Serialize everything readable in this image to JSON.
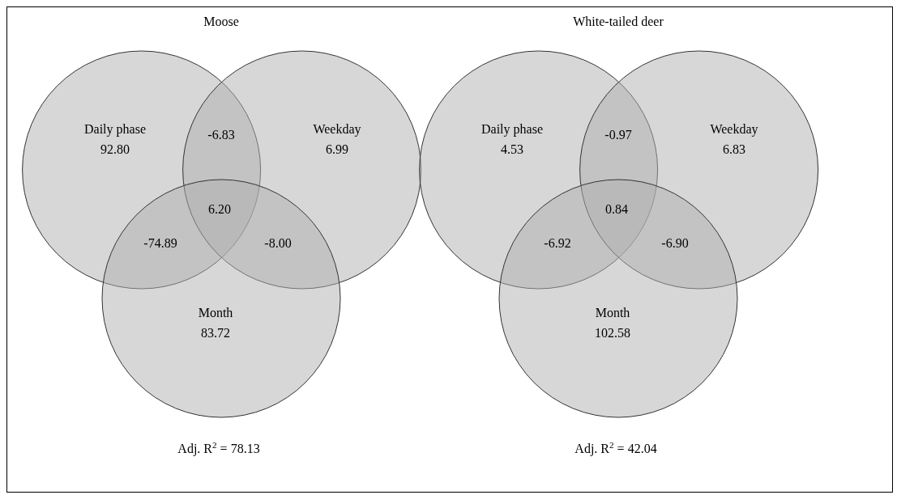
{
  "chart_data": [
    {
      "type": "other",
      "title": "Moose",
      "color": "#b0b0b0",
      "categories": [
        "Daily phase",
        "Weekday",
        "Month"
      ],
      "values": [
        92.8,
        6.99,
        83.72
      ],
      "value_labels": [
        "92.80",
        "6.99",
        "83.72"
      ],
      "annotations": [
        "-6.83",
        "-74.89",
        "-8.00",
        "6.20",
        "Adj. R$^{2}$ = 78.13"
      ]
    },
    {
      "type": "other",
      "title": "White-tailed deer",
      "color": "#b0b0b0",
      "categories": [
        "Daily phase",
        "Weekday",
        "Month"
      ],
      "values": [
        4.53,
        6.83,
        102.58
      ],
      "value_labels": [
        "4.53",
        "6.83",
        "102.58"
      ],
      "annotations": [
        "-0.97",
        "-6.92",
        "-6.90",
        "0.84",
        "Adj. R$^{2}$ = 42.04"
      ]
    }
  ]
}
